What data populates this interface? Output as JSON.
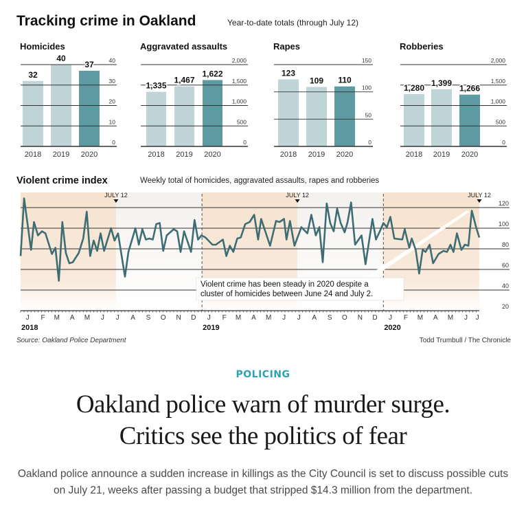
{
  "infographic": {
    "title": "Tracking crime in Oakland",
    "subtitle": "Year-to-date totals (through July 12)",
    "source": "Source: Oakland Police Department",
    "credit": "Todd Trumbull / The Chronicle",
    "colors": {
      "bar_light": "#bfd4d7",
      "bar_current": "#5e9aa1",
      "line": "#3d6c73",
      "shade": "#f6e4d1",
      "grid": "#333333"
    }
  },
  "chart_data": [
    {
      "type": "bar",
      "title": "Homicides",
      "categories": [
        "2018",
        "2019",
        "2020"
      ],
      "values": [
        32,
        40,
        37
      ],
      "data_labels": [
        "32",
        "40",
        "37"
      ],
      "ylim": [
        0,
        40
      ],
      "yticks": [
        "0",
        "10",
        "20",
        "30",
        "40"
      ]
    },
    {
      "type": "bar",
      "title": "Aggravated assaults",
      "categories": [
        "2018",
        "2019",
        "2020"
      ],
      "values": [
        1335,
        1467,
        1622
      ],
      "data_labels": [
        "1,335",
        "1,467",
        "1,622"
      ],
      "ylim": [
        0,
        2000
      ],
      "yticks": [
        "0",
        "500",
        "1,000",
        "1,500",
        "2,000"
      ]
    },
    {
      "type": "bar",
      "title": "Rapes",
      "categories": [
        "2018",
        "2019",
        "2020"
      ],
      "values": [
        123,
        109,
        110
      ],
      "data_labels": [
        "123",
        "109",
        "110"
      ],
      "ylim": [
        0,
        150
      ],
      "yticks": [
        "0",
        "50",
        "100",
        "150"
      ]
    },
    {
      "type": "bar",
      "title": "Robberies",
      "categories": [
        "2018",
        "2019",
        "2020"
      ],
      "values": [
        1280,
        1399,
        1266
      ],
      "data_labels": [
        "1,280",
        "1,399",
        "1,266"
      ],
      "ylim": [
        0,
        2000
      ],
      "yticks": [
        "0",
        "500",
        "1,000",
        "1,500",
        "2,000"
      ]
    },
    {
      "type": "line",
      "title": "Violent crime index",
      "subtitle": "Weekly total of homicides, aggravated assaults, rapes and robberies",
      "ylim": [
        20,
        120
      ],
      "yticks": [
        "20",
        "40",
        "60",
        "80",
        "100",
        "120"
      ],
      "grid": true,
      "month_labels": [
        "J",
        "F",
        "M",
        "A",
        "M",
        "J",
        "J",
        "A",
        "S",
        "O",
        "N",
        "D",
        "J",
        "F",
        "M",
        "A",
        "M",
        "J",
        "J",
        "A",
        "S",
        "O",
        "N",
        "D",
        "J",
        "F",
        "M",
        "A",
        "M",
        "J",
        "J"
      ],
      "year_labels": [
        "2018",
        "2019",
        "2020"
      ],
      "marker_label": "JULY 12",
      "annotation": [
        "Violent crime has been steady in 2020 despite a",
        "cluster of homicides between June 24 and July 2."
      ],
      "points": [
        [
          "2018-01-01",
          73
        ],
        [
          "2018-01-08",
          129
        ],
        [
          "2018-01-22",
          79
        ],
        [
          "2018-01-28",
          106
        ],
        [
          "2018-02-05",
          93
        ],
        [
          "2018-02-13",
          97
        ],
        [
          "2018-02-20",
          95
        ],
        [
          "2018-03-05",
          75
        ],
        [
          "2018-03-12",
          81
        ],
        [
          "2018-03-19",
          49
        ],
        [
          "2018-03-26",
          106
        ],
        [
          "2018-04-02",
          76
        ],
        [
          "2018-04-09",
          66
        ],
        [
          "2018-04-16",
          67
        ],
        [
          "2018-04-28",
          76
        ],
        [
          "2018-05-07",
          90
        ],
        [
          "2018-05-14",
          116
        ],
        [
          "2018-05-21",
          73
        ],
        [
          "2018-05-28",
          88
        ],
        [
          "2018-06-04",
          78
        ],
        [
          "2018-06-11",
          95
        ],
        [
          "2018-06-18",
          78
        ],
        [
          "2018-07-02",
          100
        ],
        [
          "2018-07-09",
          88
        ],
        [
          "2018-07-16",
          95
        ],
        [
          "2018-07-30",
          53
        ],
        [
          "2018-08-06",
          77
        ],
        [
          "2018-08-20",
          100
        ],
        [
          "2018-08-27",
          84
        ],
        [
          "2018-09-03",
          99
        ],
        [
          "2018-09-10",
          89
        ],
        [
          "2018-09-17",
          90
        ],
        [
          "2018-09-24",
          89
        ],
        [
          "2018-10-01",
          104
        ],
        [
          "2018-10-08",
          105
        ],
        [
          "2018-10-15",
          78
        ],
        [
          "2018-10-22",
          93
        ],
        [
          "2018-11-05",
          99
        ],
        [
          "2018-11-12",
          97
        ],
        [
          "2018-11-19",
          77
        ],
        [
          "2018-11-26",
          97
        ],
        [
          "2018-12-10",
          77
        ],
        [
          "2018-12-17",
          108
        ],
        [
          "2018-12-24",
          89
        ],
        [
          "2018-12-31",
          93
        ],
        [
          "2019-01-08",
          91
        ],
        [
          "2019-01-22",
          84
        ],
        [
          "2019-01-29",
          84
        ],
        [
          "2019-02-12",
          89
        ],
        [
          "2019-02-19",
          73
        ],
        [
          "2019-02-26",
          83
        ],
        [
          "2019-03-05",
          77
        ],
        [
          "2019-03-13",
          90
        ],
        [
          "2019-03-20",
          91
        ],
        [
          "2019-03-29",
          104
        ],
        [
          "2019-04-07",
          106
        ],
        [
          "2019-04-16",
          113
        ],
        [
          "2019-04-24",
          89
        ],
        [
          "2019-04-30",
          109
        ],
        [
          "2019-05-18",
          83
        ],
        [
          "2019-05-30",
          107
        ],
        [
          "2019-06-06",
          106
        ],
        [
          "2019-06-15",
          109
        ],
        [
          "2019-06-20",
          89
        ],
        [
          "2019-06-27",
          107
        ],
        [
          "2019-07-06",
          83
        ],
        [
          "2019-07-20",
          101
        ],
        [
          "2019-08-01",
          95
        ],
        [
          "2019-08-09",
          113
        ],
        [
          "2019-08-18",
          93
        ],
        [
          "2019-08-25",
          101
        ],
        [
          "2019-09-01",
          67
        ],
        [
          "2019-09-09",
          124
        ],
        [
          "2019-09-16",
          105
        ],
        [
          "2019-09-23",
          97
        ],
        [
          "2019-09-30",
          119
        ],
        [
          "2019-10-07",
          105
        ],
        [
          "2019-10-15",
          96
        ],
        [
          "2019-10-21",
          106
        ],
        [
          "2019-10-28",
          125
        ],
        [
          "2019-11-05",
          84
        ],
        [
          "2019-11-18",
          93
        ],
        [
          "2019-11-26",
          65
        ],
        [
          "2019-12-10",
          109
        ],
        [
          "2019-12-17",
          89
        ],
        [
          "2019-12-24",
          96
        ],
        [
          "2020-01-01",
          105
        ],
        [
          "2020-01-08",
          101
        ],
        [
          "2020-01-15",
          111
        ],
        [
          "2020-01-23",
          90
        ],
        [
          "2020-02-08",
          89
        ],
        [
          "2020-02-13",
          99
        ],
        [
          "2020-02-22",
          81
        ],
        [
          "2020-02-27",
          90
        ],
        [
          "2020-03-06",
          79
        ],
        [
          "2020-03-13",
          56
        ],
        [
          "2020-03-20",
          79
        ],
        [
          "2020-03-26",
          77
        ],
        [
          "2020-04-03",
          84
        ],
        [
          "2020-04-10",
          66
        ],
        [
          "2020-04-21",
          75
        ],
        [
          "2020-05-01",
          78
        ],
        [
          "2020-05-08",
          77
        ],
        [
          "2020-05-15",
          84
        ],
        [
          "2020-05-21",
          77
        ],
        [
          "2020-05-28",
          95
        ],
        [
          "2020-06-06",
          79
        ],
        [
          "2020-06-13",
          84
        ],
        [
          "2020-06-20",
          83
        ],
        [
          "2020-06-27",
          117
        ],
        [
          "2020-07-06",
          100
        ],
        [
          "2020-07-12",
          91
        ]
      ]
    }
  ],
  "article": {
    "kicker": "POLICING",
    "headline_line1": "Oakland police warn of murder surge.",
    "headline_line2": "Critics see the politics of fear",
    "deck": "Oakland police announce a sudden increase in killings as the City Council is set to discuss possible cuts on July 21, weeks after passing a budget that stripped $14.3 million from the department."
  }
}
